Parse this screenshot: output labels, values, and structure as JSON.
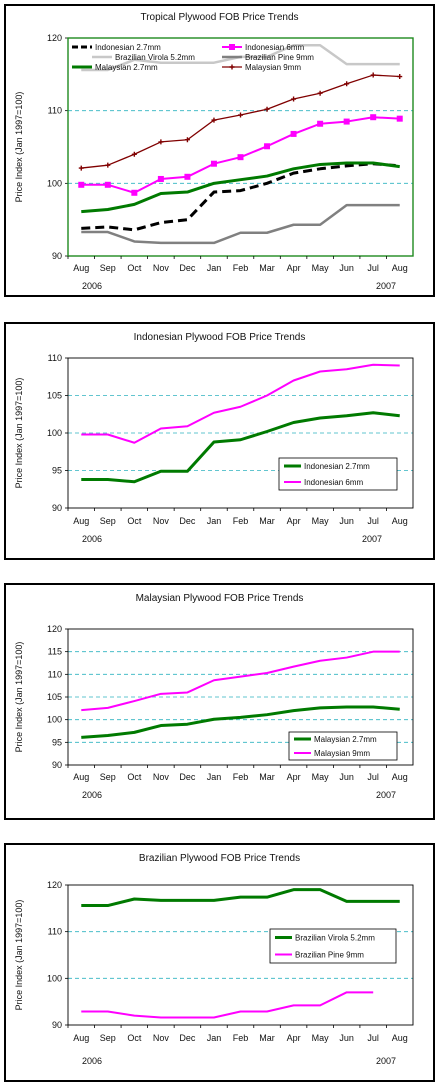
{
  "chart_data": [
    {
      "type": "line",
      "title": "Tropical Plywood FOB Price Trends",
      "ylabel": "Price Index (Jan 1997=100)",
      "ylim": [
        90,
        120
      ],
      "yticks": [
        90,
        100,
        110,
        120
      ],
      "grid": "dashed horizontal",
      "legend": "top, inside plot",
      "categories": [
        "Aug",
        "Sep",
        "Oct",
        "Nov",
        "Dec",
        "Jan",
        "Feb",
        "Mar",
        "Apr",
        "May",
        "Jun",
        "Jul",
        "Aug"
      ],
      "year_start": "2006",
      "year_end": "2007",
      "series": [
        {
          "name": "Indonesian 2.7mm",
          "color": "#000000",
          "style": "dashed",
          "marker": "none",
          "values": [
            93.8,
            94,
            93.6,
            94.6,
            95,
            98.8,
            99,
            100,
            101.4,
            102,
            102.4,
            102.7,
            102.4
          ]
        },
        {
          "name": "Indonesian 6mm",
          "color": "#ff00ff",
          "style": "solid",
          "marker": "square",
          "values": [
            99.8,
            99.8,
            98.7,
            100.6,
            100.9,
            102.7,
            103.6,
            105.1,
            106.8,
            108.2,
            108.5,
            109.1,
            108.9
          ]
        },
        {
          "name": "Brazilian Virola 5.2mm",
          "color": "#c8c8c8",
          "style": "solid",
          "marker": "none",
          "values": [
            115.6,
            115.6,
            117,
            116.6,
            116.6,
            116.6,
            117.4,
            117.4,
            119,
            119,
            116.4,
            116.4,
            116.4
          ]
        },
        {
          "name": "Brazilian Pine 9mm",
          "color": "#808080",
          "style": "solid",
          "marker": "none",
          "values": [
            93.3,
            93.3,
            92,
            91.8,
            91.8,
            91.8,
            93.2,
            93.2,
            94.3,
            94.3,
            97,
            97,
            97
          ]
        },
        {
          "name": "Malaysian 2.7mm",
          "color": "#007a00",
          "style": "solid",
          "marker": "none",
          "values": [
            96.1,
            96.4,
            97.1,
            98.6,
            98.8,
            100,
            100.5,
            101,
            102,
            102.6,
            102.8,
            102.8,
            102.3
          ]
        },
        {
          "name": "Malaysian 9mm",
          "color": "#800000",
          "style": "solid",
          "marker": "plus",
          "values": [
            102.1,
            102.5,
            104,
            105.7,
            106,
            108.7,
            109.4,
            110.2,
            111.6,
            112.4,
            113.7,
            114.9,
            114.7
          ]
        }
      ]
    },
    {
      "type": "line",
      "title": "Indonesian Plywood FOB Price Trends",
      "ylabel": "Price Index (Jan 1997=100)",
      "ylim": [
        90,
        110
      ],
      "yticks": [
        90,
        95,
        100,
        105,
        110
      ],
      "grid": "dashed horizontal",
      "legend": "bottom-right",
      "categories": [
        "Aug",
        "Sep",
        "Oct",
        "Nov",
        "Dec",
        "Jan",
        "Feb",
        "Mar",
        "Apr",
        "May",
        "Jun",
        "Jul",
        "Aug"
      ],
      "year_start": "2006",
      "year_end": "2007",
      "series": [
        {
          "name": "Indonesian 2.7mm",
          "color": "#007a00",
          "style": "solid",
          "marker": "none",
          "values": [
            93.8,
            93.8,
            93.5,
            94.9,
            94.9,
            98.8,
            99.1,
            100.2,
            101.4,
            102,
            102.3,
            102.7,
            102.3
          ]
        },
        {
          "name": "Indonesian 6mm",
          "color": "#ff00ff",
          "style": "solid",
          "marker": "none",
          "values": [
            99.8,
            99.8,
            98.7,
            100.6,
            100.9,
            102.7,
            103.5,
            105,
            107,
            108.2,
            108.5,
            109.1,
            109
          ]
        }
      ]
    },
    {
      "type": "line",
      "title": "Malaysian Plywood FOB Price Trends",
      "ylabel": "Price Index (Jan 1997=100)",
      "ylim": [
        90,
        120
      ],
      "yticks": [
        90,
        95,
        100,
        105,
        110,
        115,
        120
      ],
      "grid": "dashed horizontal",
      "legend": "bottom-right",
      "categories": [
        "Aug",
        "Sep",
        "Oct",
        "Nov",
        "Dec",
        "Jan",
        "Feb",
        "Mar",
        "Apr",
        "May",
        "Jun",
        "Jul",
        "Aug"
      ],
      "year_start": "2006",
      "year_end": "2007",
      "series": [
        {
          "name": "Malaysian 2.7mm",
          "color": "#007a00",
          "style": "solid",
          "marker": "none",
          "values": [
            96.1,
            96.5,
            97.2,
            98.7,
            99,
            100.1,
            100.5,
            101.1,
            102,
            102.6,
            102.8,
            102.8,
            102.3
          ]
        },
        {
          "name": "Malaysian 9mm",
          "color": "#ff00ff",
          "style": "solid",
          "marker": "none",
          "values": [
            102.1,
            102.6,
            104.1,
            105.7,
            106,
            108.7,
            109.5,
            110.3,
            111.7,
            113,
            113.7,
            115,
            115
          ]
        }
      ]
    },
    {
      "type": "line",
      "title": "Brazilian Plywood FOB Price Trends",
      "ylabel": "Price Index (Jan 1997=100)",
      "ylim": [
        90,
        120
      ],
      "yticks": [
        90,
        100,
        110,
        120
      ],
      "grid": "dashed horizontal",
      "legend": "right, middle",
      "categories": [
        "Aug",
        "Sep",
        "Oct",
        "Nov",
        "Dec",
        "Jan",
        "Feb",
        "Mar",
        "Apr",
        "May",
        "Jun",
        "Jul",
        "Aug"
      ],
      "year_start": "2006",
      "year_end": "2007",
      "series": [
        {
          "name": "Brazilian Virola 5.2mm",
          "color": "#007a00",
          "style": "solid",
          "marker": "none",
          "values": [
            115.6,
            115.6,
            117,
            116.7,
            116.7,
            116.7,
            117.4,
            117.4,
            119,
            119,
            116.5,
            116.5,
            116.5
          ]
        },
        {
          "name": "Brazilian Pine 9mm",
          "color": "#ff00ff",
          "style": "solid",
          "marker": "none",
          "values": [
            92.9,
            92.9,
            92,
            91.6,
            91.6,
            91.6,
            92.9,
            92.9,
            94.2,
            94.2,
            97,
            97,
            null
          ]
        }
      ]
    }
  ]
}
